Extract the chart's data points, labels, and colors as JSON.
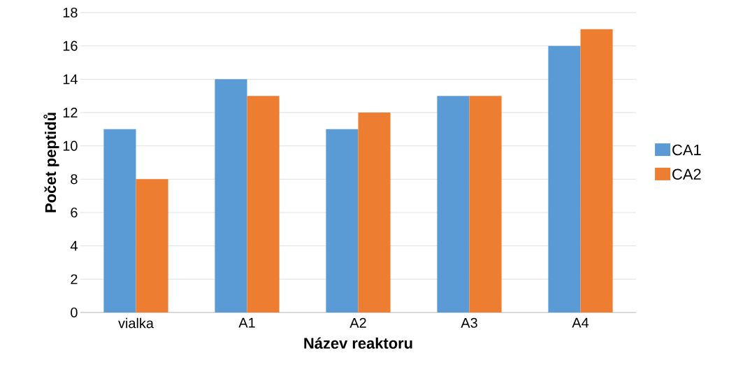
{
  "chart_data": {
    "type": "bar",
    "xlabel": "Název reaktoru",
    "ylabel": "Počet peptidů",
    "categories": [
      "vialka",
      "A1",
      "A2",
      "A3",
      "A4"
    ],
    "series": [
      {
        "name": "CA1",
        "color": "#5b9bd5",
        "values": [
          11,
          14,
          11,
          13,
          16
        ]
      },
      {
        "name": "CA2",
        "color": "#ed7d31",
        "values": [
          8,
          13,
          12,
          13,
          17
        ]
      }
    ],
    "ylim": [
      0,
      18
    ],
    "yticks": [
      0,
      2,
      4,
      6,
      8,
      10,
      12,
      14,
      16,
      18
    ],
    "grid": "y",
    "legend": "right"
  }
}
